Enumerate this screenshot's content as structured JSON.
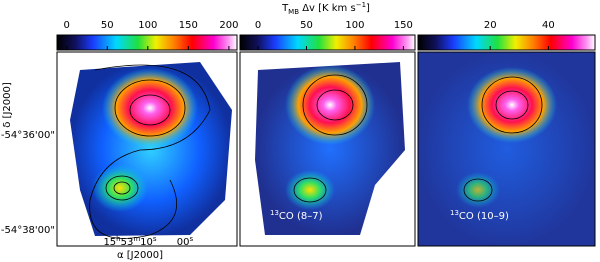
{
  "colorbar_title": {
    "main": "T",
    "sub": "MB",
    "rest": " Δv [K km s",
    "sup": "−1",
    "end": "]"
  },
  "panels": [
    {
      "colorbar": {
        "range": [
          -12,
          210
        ],
        "ticks": [
          0,
          50,
          100,
          150,
          200
        ]
      },
      "label": null
    },
    {
      "colorbar": {
        "range": [
          -18.6,
          162
        ],
        "ticks": [
          0,
          50,
          100,
          150
        ]
      },
      "label": {
        "iso": "13",
        "text": "CO (8–7)"
      }
    },
    {
      "colorbar": {
        "range": [
          -4.8,
          56
        ],
        "ticks": [
          20,
          40
        ]
      },
      "label": {
        "iso": "13",
        "text": "CO (10–9)"
      }
    }
  ],
  "y_axis": {
    "title": "δ [J2000]",
    "ticks": [
      "-54°36'00\"",
      "-54°38'00\""
    ]
  },
  "x_axis": {
    "title": "α [J2000]",
    "ticks": [
      {
        "h": "15",
        "hu": "h",
        "m": "53",
        "mu": "m",
        "s": "10",
        "su": "s"
      },
      {
        "s": "00",
        "su": "s"
      }
    ]
  }
}
